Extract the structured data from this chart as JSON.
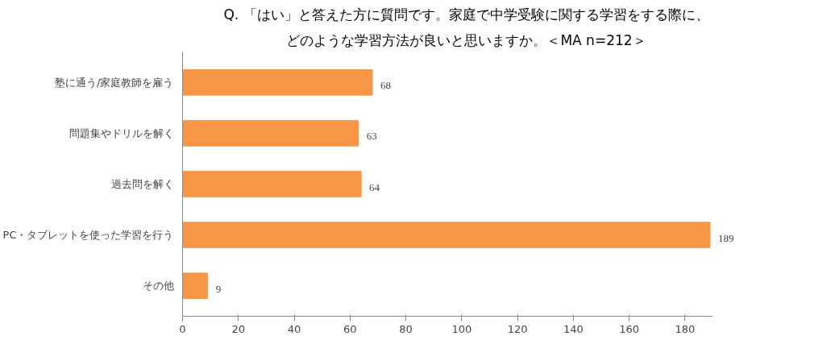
{
  "chart_data": {
    "type": "bar",
    "orientation": "horizontal",
    "title": "Q. 「はい」と答えた方に質問です。家庭で中学受験に関する学習をする際に、",
    "subtitle": "どのような学習方法が良いと思いますか。＜MA n=212＞",
    "categories": [
      "塾に通う/家庭教師を雇う",
      "問題集やドリルを解く",
      "過去問を解く",
      "PC・タブレットを使った学習を行う",
      "その他"
    ],
    "values": [
      68,
      63,
      64,
      189,
      9
    ],
    "color": "#f79646",
    "xlim": [
      0,
      190
    ],
    "xticks": [
      0,
      20,
      40,
      60,
      80,
      100,
      120,
      140,
      160,
      180
    ],
    "grid": false,
    "data_labels": true
  }
}
